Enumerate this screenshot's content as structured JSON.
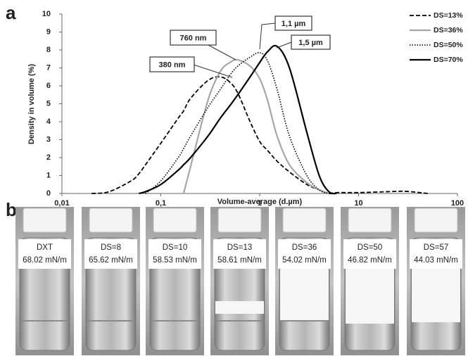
{
  "chart_data": {
    "type": "line",
    "panel_label": "a",
    "y_label": "Density in volume (%)",
    "x_label": "Volume-average (d.µm)",
    "log_x": true,
    "xlim": [
      0.01,
      100
    ],
    "xticks": [
      {
        "value": 0.01,
        "label": "0,01"
      },
      {
        "value": 0.1,
        "label": "0,1"
      },
      1,
      10,
      100
    ],
    "ylim": [
      0,
      10
    ],
    "yticks": [
      0,
      1,
      2,
      3,
      4,
      5,
      6,
      7,
      8,
      9,
      10
    ],
    "legend": "top-right",
    "x": [
      0.02,
      0.03,
      0.05,
      0.06,
      0.07,
      0.1,
      0.15,
      0.17,
      0.2,
      0.3,
      0.4,
      0.5,
      0.6,
      0.8,
      1,
      1.2,
      1.5,
      2,
      3,
      4,
      5,
      6,
      10,
      20,
      30,
      50
    ],
    "series": [
      {
        "name": "DS=13%",
        "color": "#000000",
        "dash": "dashed",
        "values": [
          0,
          0.1,
          0.7,
          1.1,
          1.6,
          2.8,
          4.2,
          4.6,
          5.3,
          6.3,
          6.5,
          6.2,
          5.6,
          4.0,
          2.9,
          2.4,
          1.8,
          1.2,
          0.5,
          0.2,
          0,
          0.05,
          0.05,
          0.1,
          0.12,
          0
        ]
      },
      {
        "name": "DS=36%",
        "color": "#a6a6a6",
        "dash": "solid",
        "values": [
          null,
          null,
          null,
          null,
          null,
          null,
          null,
          0,
          1.5,
          5.2,
          6.8,
          7.3,
          7.45,
          7.1,
          6.4,
          5.2,
          3.2,
          1.6,
          0.6,
          0.2,
          0,
          null,
          null,
          null,
          null,
          null
        ]
      },
      {
        "name": "DS=50%",
        "color": "#000000",
        "dash": "dotted",
        "values": [
          null,
          null,
          null,
          null,
          0,
          0.7,
          2.0,
          2.5,
          3.2,
          4.8,
          5.8,
          6.6,
          7.1,
          7.6,
          7.85,
          7.4,
          5.8,
          3.2,
          1.0,
          0.2,
          0,
          null,
          null,
          null,
          null,
          null
        ]
      },
      {
        "name": "DS=70%",
        "color": "#000000",
        "dash": "solid",
        "values": [
          null,
          null,
          null,
          0,
          0.1,
          0.5,
          1.3,
          1.6,
          2.0,
          3.2,
          4.2,
          4.9,
          5.5,
          6.5,
          7.3,
          7.9,
          8.2,
          7.0,
          3.4,
          1.0,
          0.1,
          0,
          null,
          null,
          null,
          null
        ]
      }
    ],
    "annotations": [
      "380 nm",
      "760 nm",
      "1,1 µm",
      "1,5 µm"
    ]
  },
  "photos": {
    "panel_label": "b",
    "samples": [
      {
        "name": "DXT",
        "tension": "68.02 mN/m"
      },
      {
        "name": "DS=8",
        "tension": "65.62 mN/m"
      },
      {
        "name": "DS=10",
        "tension": "58.53 mN/m"
      },
      {
        "name": "DS=13",
        "tension": "58.61 mN/m"
      },
      {
        "name": "DS=36",
        "tension": "54.02 mN/m"
      },
      {
        "name": "DS=50",
        "tension": "46.82 mN/m"
      },
      {
        "name": "DS=57",
        "tension": "44.03 mN/m"
      }
    ]
  }
}
